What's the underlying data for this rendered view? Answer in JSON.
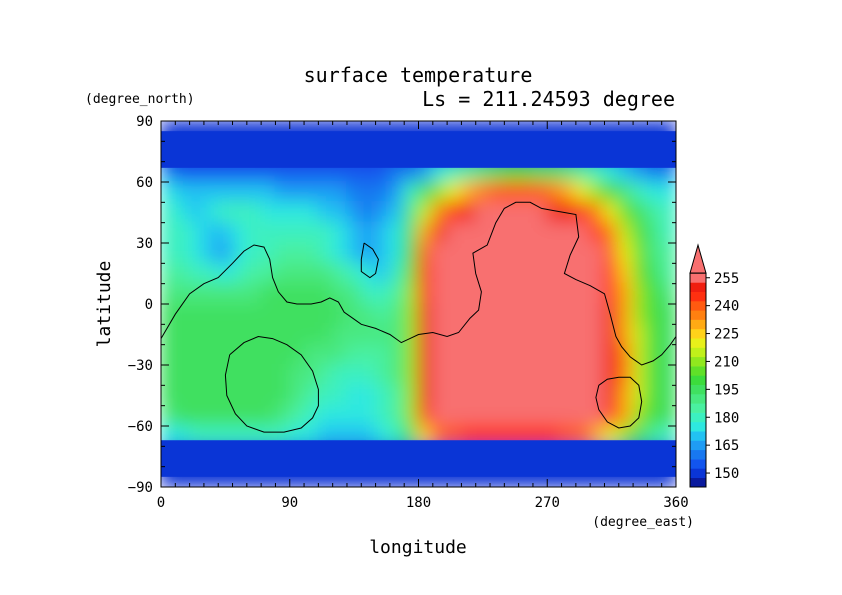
{
  "chart_data": {
    "type": "heatmap",
    "title": "surface temperature",
    "subtitle": "Ls = 211.24593 degree",
    "xlabel": "longitude",
    "ylabel": "latitude",
    "xunits": "(degree_east)",
    "yunits": "(degree_north)",
    "xlim": [
      0,
      360
    ],
    "ylim": [
      -90,
      90
    ],
    "xticks": [
      0,
      90,
      180,
      270,
      360
    ],
    "yticks": [
      90,
      60,
      30,
      0,
      -30,
      -60,
      -90
    ],
    "colorbar": {
      "levels": [
        145,
        150,
        155,
        160,
        165,
        170,
        175,
        180,
        185,
        190,
        195,
        200,
        205,
        210,
        215,
        220,
        225,
        230,
        235,
        240,
        245,
        250,
        255,
        260
      ],
      "tick_labels": [
        150,
        165,
        180,
        195,
        210,
        225,
        240,
        255
      ],
      "colors": [
        "#0a1a9e",
        "#0a35d6",
        "#1255ee",
        "#1878f0",
        "#1f9cf4",
        "#22c2f2",
        "#2ee8e0",
        "#3cf0c0",
        "#4af0a0",
        "#48e880",
        "#40e060",
        "#3cdc3c",
        "#60e028",
        "#90e81e",
        "#c0f01a",
        "#e8f01a",
        "#ffd21a",
        "#ffaa14",
        "#ff8010",
        "#ff5a10",
        "#ff3010",
        "#f01e10",
        "#f87070"
      ],
      "extend": "max"
    },
    "field": {
      "lon": [
        5,
        15,
        25,
        35,
        45,
        55,
        65,
        75,
        85,
        95,
        105,
        115,
        125,
        135,
        145,
        155,
        165,
        175,
        185,
        195,
        205,
        215,
        225,
        235,
        245,
        255,
        265,
        275,
        285,
        295,
        305,
        315,
        325,
        335,
        345,
        355
      ],
      "lat": [
        85,
        75,
        65,
        55,
        45,
        35,
        25,
        15,
        5,
        -5,
        -15,
        -25,
        -35,
        -45,
        -55,
        -65,
        -75,
        -85
      ],
      "values": [
        [
          152,
          152,
          152,
          152,
          152,
          152,
          152,
          152,
          152,
          152,
          152,
          152,
          152,
          152,
          152,
          152,
          152,
          152,
          152,
          152,
          152,
          152,
          152,
          152,
          152,
          152,
          152,
          152,
          152,
          152,
          152,
          152,
          152,
          152,
          152,
          152
        ],
        [
          152,
          152,
          152,
          152,
          152,
          152,
          152,
          152,
          152,
          152,
          152,
          152,
          152,
          152,
          152,
          152,
          152,
          152,
          152,
          152,
          152,
          152,
          152,
          152,
          152,
          152,
          152,
          152,
          152,
          152,
          152,
          152,
          152,
          152,
          152,
          152
        ],
        [
          160,
          158,
          157,
          157,
          157,
          157,
          157,
          158,
          158,
          158,
          157,
          157,
          157,
          157,
          157,
          158,
          160,
          163,
          168,
          175,
          182,
          188,
          193,
          197,
          200,
          200,
          199,
          197,
          193,
          188,
          183,
          178,
          173,
          168,
          164,
          161
        ],
        [
          175,
          172,
          170,
          170,
          172,
          173,
          172,
          170,
          168,
          168,
          168,
          168,
          165,
          163,
          160,
          162,
          168,
          180,
          195,
          210,
          222,
          230,
          236,
          240,
          242,
          242,
          240,
          236,
          230,
          222,
          212,
          200,
          190,
          182,
          178,
          176
        ],
        [
          180,
          176,
          174,
          176,
          180,
          181,
          180,
          178,
          175,
          175,
          176,
          174,
          170,
          166,
          163,
          165,
          172,
          190,
          215,
          238,
          248,
          252,
          255,
          256,
          257,
          257,
          256,
          254,
          250,
          245,
          236,
          222,
          208,
          195,
          186,
          181
        ],
        [
          182,
          180,
          176,
          172,
          172,
          176,
          180,
          182,
          182,
          183,
          184,
          180,
          176,
          170,
          166,
          170,
          176,
          195,
          230,
          250,
          256,
          260,
          262,
          262,
          262,
          262,
          262,
          262,
          260,
          256,
          248,
          235,
          218,
          202,
          190,
          183
        ],
        [
          184,
          183,
          178,
          172,
          168,
          175,
          181,
          184,
          186,
          186,
          186,
          184,
          178,
          172,
          165,
          170,
          178,
          200,
          240,
          255,
          260,
          262,
          262,
          262,
          262,
          262,
          262,
          262,
          262,
          260,
          255,
          240,
          222,
          205,
          192,
          185
        ],
        [
          188,
          186,
          183,
          180,
          178,
          182,
          186,
          188,
          190,
          191,
          191,
          190,
          186,
          180,
          176,
          174,
          180,
          205,
          245,
          258,
          262,
          262,
          262,
          262,
          262,
          262,
          262,
          262,
          262,
          262,
          258,
          245,
          226,
          208,
          196,
          189
        ],
        [
          192,
          191,
          190,
          190,
          190,
          191,
          193,
          195,
          196,
          197,
          196,
          195,
          193,
          190,
          184,
          180,
          185,
          210,
          248,
          260,
          262,
          262,
          262,
          262,
          262,
          262,
          262,
          262,
          262,
          262,
          260,
          248,
          230,
          212,
          200,
          193
        ],
        [
          195,
          195,
          195,
          195,
          195,
          196,
          197,
          198,
          198,
          198,
          198,
          197,
          195,
          193,
          190,
          188,
          190,
          212,
          250,
          260,
          262,
          262,
          262,
          262,
          262,
          262,
          262,
          262,
          262,
          262,
          260,
          250,
          232,
          214,
          202,
          196
        ],
        [
          196,
          196,
          197,
          197,
          198,
          198,
          199,
          199,
          199,
          198,
          197,
          196,
          194,
          192,
          190,
          190,
          192,
          213,
          252,
          261,
          262,
          262,
          262,
          262,
          262,
          262,
          262,
          262,
          262,
          262,
          261,
          252,
          234,
          215,
          203,
          197
        ],
        [
          196,
          196,
          197,
          198,
          199,
          199,
          199,
          199,
          198,
          196,
          194,
          192,
          190,
          189,
          188,
          189,
          192,
          214,
          252,
          261,
          262,
          262,
          262,
          262,
          262,
          262,
          262,
          262,
          262,
          262,
          261,
          253,
          235,
          216,
          203,
          197
        ],
        [
          196,
          197,
          198,
          198,
          199,
          199,
          199,
          199,
          197,
          194,
          190,
          186,
          184,
          183,
          183,
          185,
          190,
          214,
          252,
          261,
          262,
          262,
          262,
          262,
          262,
          262,
          262,
          262,
          262,
          262,
          261,
          252,
          235,
          216,
          203,
          197
        ],
        [
          195,
          196,
          197,
          198,
          199,
          199,
          199,
          198,
          195,
          191,
          186,
          182,
          180,
          179,
          179,
          181,
          188,
          213,
          251,
          260,
          262,
          262,
          262,
          262,
          262,
          262,
          262,
          262,
          262,
          262,
          260,
          251,
          234,
          215,
          202,
          196
        ],
        [
          194,
          195,
          196,
          197,
          198,
          198,
          197,
          195,
          191,
          186,
          182,
          179,
          178,
          178,
          178,
          180,
          186,
          212,
          248,
          258,
          260,
          261,
          261,
          261,
          261,
          261,
          261,
          261,
          260,
          259,
          256,
          247,
          230,
          212,
          200,
          195
        ],
        [
          178,
          178,
          180,
          182,
          183,
          184,
          184,
          183,
          180,
          177,
          175,
          174,
          174,
          174,
          174,
          176,
          180,
          195,
          225,
          240,
          244,
          245,
          245,
          245,
          245,
          245,
          245,
          245,
          244,
          240,
          232,
          222,
          210,
          198,
          188,
          182
        ],
        [
          152,
          152,
          152,
          152,
          152,
          152,
          152,
          152,
          152,
          152,
          152,
          152,
          152,
          152,
          152,
          152,
          152,
          152,
          152,
          152,
          152,
          152,
          152,
          152,
          152,
          152,
          152,
          152,
          152,
          152,
          152,
          152,
          152,
          152,
          152,
          152
        ],
        [
          152,
          152,
          152,
          152,
          152,
          152,
          152,
          152,
          152,
          152,
          152,
          152,
          152,
          152,
          152,
          152,
          152,
          152,
          152,
          152,
          152,
          152,
          152,
          152,
          152,
          152,
          152,
          152,
          152,
          152,
          152,
          152,
          152,
          152,
          152,
          152
        ]
      ]
    },
    "contours": [
      [
        [
          0,
          -17
        ],
        [
          10,
          -5
        ],
        [
          20,
          5
        ],
        [
          30,
          10
        ],
        [
          40,
          13
        ],
        [
          50,
          20
        ],
        [
          58,
          26
        ],
        [
          65,
          29
        ],
        [
          72,
          28
        ],
        [
          76,
          22
        ],
        [
          78,
          13
        ],
        [
          82,
          6
        ],
        [
          88,
          1
        ],
        [
          95,
          0
        ],
        [
          105,
          0
        ],
        [
          112,
          1
        ],
        [
          118,
          3
        ],
        [
          124,
          1
        ],
        [
          128,
          -4
        ],
        [
          134,
          -7
        ],
        [
          140,
          -10
        ],
        [
          150,
          -12
        ],
        [
          160,
          -15
        ],
        [
          168,
          -19
        ],
        [
          174,
          -17
        ],
        [
          180,
          -15
        ],
        [
          190,
          -14
        ],
        [
          200,
          -16
        ],
        [
          208,
          -14
        ],
        [
          216,
          -7
        ],
        [
          222,
          -3
        ],
        [
          224,
          6
        ],
        [
          220,
          15
        ],
        [
          218,
          25
        ],
        [
          228,
          29
        ],
        [
          234,
          40
        ],
        [
          240,
          47
        ],
        [
          248,
          50
        ],
        [
          258,
          50
        ],
        [
          266,
          47
        ],
        [
          274,
          46
        ],
        [
          282,
          45
        ],
        [
          290,
          44
        ],
        [
          292,
          33
        ],
        [
          286,
          24
        ],
        [
          282,
          15
        ],
        [
          290,
          12
        ],
        [
          300,
          9
        ],
        [
          310,
          5
        ],
        [
          314,
          -5
        ],
        [
          318,
          -16
        ],
        [
          322,
          -21
        ],
        [
          328,
          -26
        ],
        [
          336,
          -30
        ],
        [
          344,
          -28
        ],
        [
          350,
          -25
        ],
        [
          356,
          -20
        ],
        [
          360,
          -16
        ]
      ],
      [
        [
          48,
          -25
        ],
        [
          58,
          -19
        ],
        [
          68,
          -16
        ],
        [
          78,
          -17
        ],
        [
          88,
          -20
        ],
        [
          98,
          -25
        ],
        [
          106,
          -33
        ],
        [
          110,
          -42
        ],
        [
          110,
          -50
        ],
        [
          106,
          -56
        ],
        [
          98,
          -61
        ],
        [
          86,
          -63
        ],
        [
          72,
          -63
        ],
        [
          60,
          -60
        ],
        [
          52,
          -54
        ],
        [
          46,
          -45
        ],
        [
          45,
          -35
        ],
        [
          48,
          -25
        ]
      ],
      [
        [
          142,
          30
        ],
        [
          148,
          27
        ],
        [
          152,
          22
        ],
        [
          150,
          15
        ],
        [
          146,
          13
        ],
        [
          140,
          16
        ],
        [
          140,
          22
        ],
        [
          142,
          30
        ]
      ],
      [
        [
          306,
          -40
        ],
        [
          312,
          -37
        ],
        [
          320,
          -36
        ],
        [
          328,
          -36
        ],
        [
          334,
          -40
        ],
        [
          336,
          -48
        ],
        [
          334,
          -56
        ],
        [
          328,
          -60
        ],
        [
          320,
          -61
        ],
        [
          312,
          -58
        ],
        [
          306,
          -52
        ],
        [
          304,
          -46
        ],
        [
          306,
          -40
        ]
      ]
    ]
  }
}
